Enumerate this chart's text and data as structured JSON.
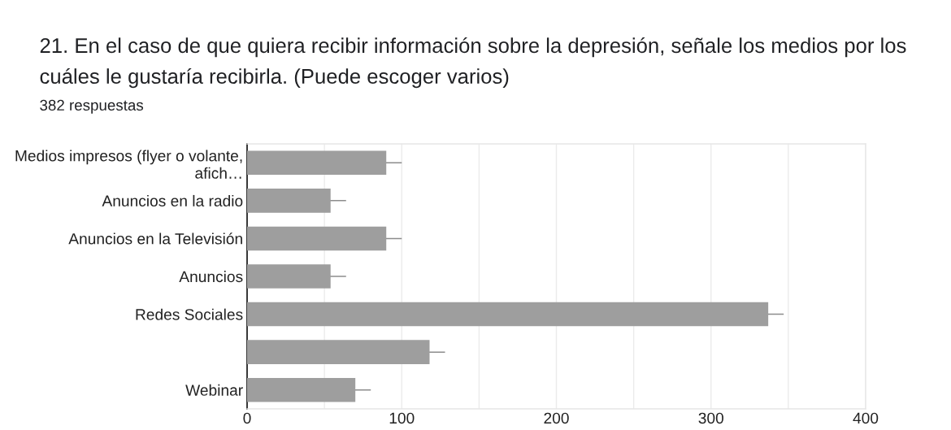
{
  "chart_data": {
    "type": "bar",
    "orientation": "horizontal",
    "title": "21. En el caso de que quiera recibir información sobre la depresión, señale los medios por los cuáles le gustaría recibirla. (Puede escoger varios)",
    "subtitle": "382 respuestas",
    "categories": [
      "Medios impresos (flyer o volante, afich…",
      "Anuncios en la radio",
      "Anuncios en la Televisión",
      "Anuncios",
      "Redes Sociales",
      null,
      "Webinar"
    ],
    "values": [
      90,
      54,
      90,
      54,
      337,
      118,
      70
    ],
    "errors": [
      10,
      10,
      10,
      10,
      10,
      10,
      10
    ],
    "color": "#9e9e9e",
    "xlim": [
      0,
      400
    ],
    "xticks": [
      0,
      {
        "value": 50,
        "label": null
      },
      100,
      {
        "value": 150,
        "label": null
      },
      200,
      {
        "value": 250,
        "label": null
      },
      300,
      {
        "value": 350,
        "label": null
      },
      400
    ],
    "grid": "x"
  }
}
